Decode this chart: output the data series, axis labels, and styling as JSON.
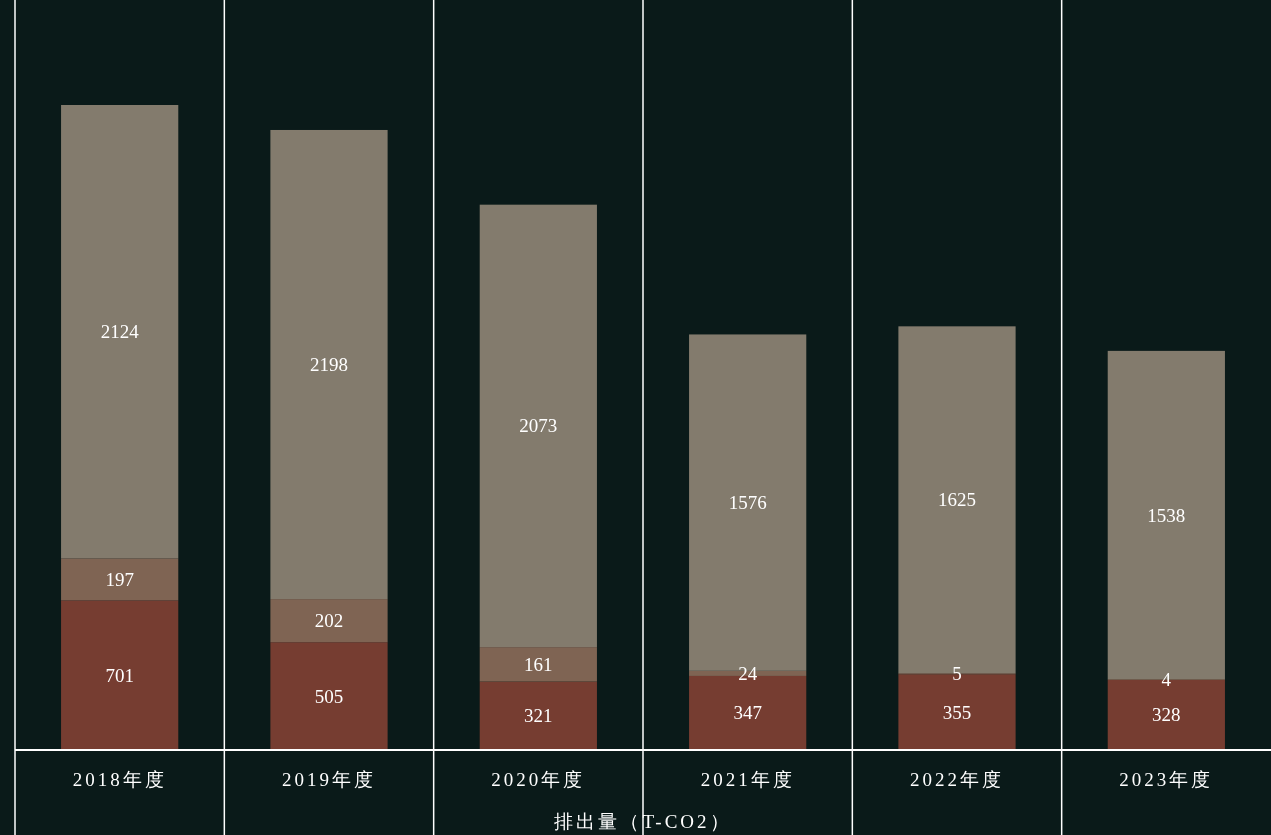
{
  "chart_data": {
    "type": "bar",
    "stacked": true,
    "data_labels": true,
    "xlabel": "排出量（T-CO2）",
    "categories": [
      "2018年度",
      "2019年度",
      "2020年度",
      "2021年度",
      "2022年度",
      "2023年度"
    ],
    "series": [
      {
        "color": "#763d31",
        "values": [
          701,
          505,
          321,
          347,
          355,
          328
        ]
      },
      {
        "color": "#7f6453",
        "values": [
          197,
          202,
          161,
          24,
          5,
          4
        ]
      },
      {
        "color": "#837b6d",
        "values": [
          2124,
          2198,
          2073,
          1576,
          1625,
          1538
        ]
      }
    ]
  }
}
